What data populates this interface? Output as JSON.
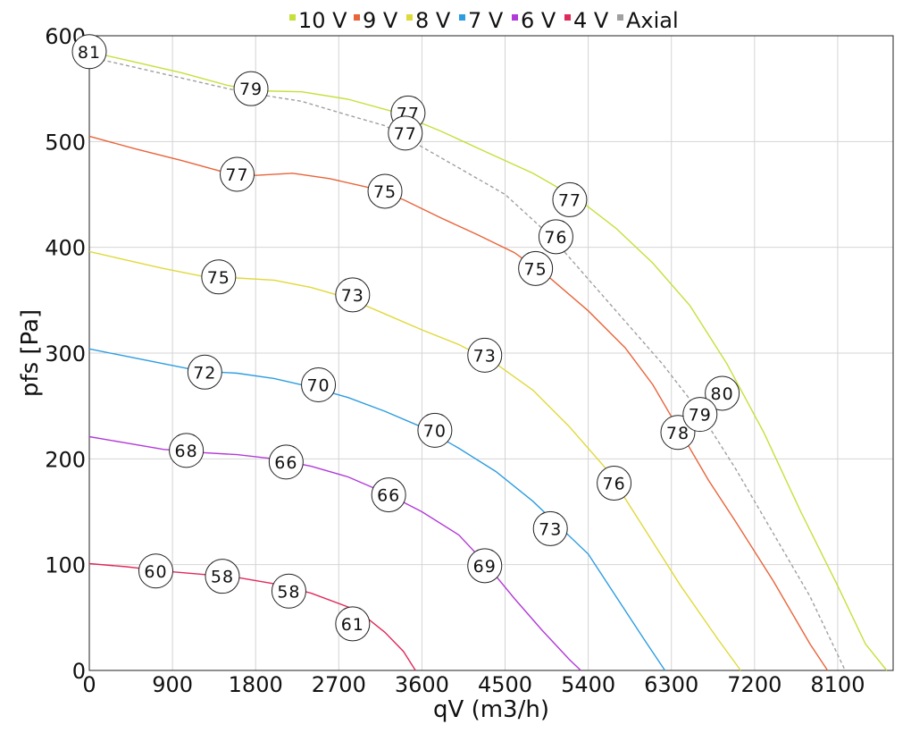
{
  "chart_data": {
    "type": "line",
    "xlabel": "qV (m3/h)",
    "ylabel": "pfs [Pa]",
    "xlim": [
      0,
      8700
    ],
    "ylim": [
      0,
      600
    ],
    "x_ticks": [
      0,
      900,
      1800,
      2700,
      3600,
      4500,
      5400,
      6300,
      7200,
      8100
    ],
    "y_ticks": [
      0,
      100,
      200,
      300,
      400,
      500,
      600
    ],
    "grid": true,
    "legend_position": "top",
    "series": [
      {
        "name": "10 V",
        "color": "#c6df3a",
        "dash": false,
        "points": [
          [
            0,
            585
          ],
          [
            500,
            575
          ],
          [
            1000,
            565
          ],
          [
            1500,
            553
          ],
          [
            1800,
            548
          ],
          [
            2300,
            547
          ],
          [
            2800,
            540
          ],
          [
            3300,
            528
          ],
          [
            3800,
            510
          ],
          [
            4300,
            490
          ],
          [
            4800,
            470
          ],
          [
            5300,
            445
          ],
          [
            5700,
            418
          ],
          [
            6100,
            385
          ],
          [
            6500,
            345
          ],
          [
            6900,
            290
          ],
          [
            7300,
            225
          ],
          [
            7700,
            150
          ],
          [
            8100,
            80
          ],
          [
            8400,
            25
          ],
          [
            8630,
            0
          ]
        ],
        "labels": [
          {
            "x": 0,
            "y": 585,
            "text": "81"
          },
          {
            "x": 1750,
            "y": 550,
            "text": "79"
          },
          {
            "x": 3450,
            "y": 527,
            "text": "77"
          },
          {
            "x": 5200,
            "y": 445,
            "text": "77"
          },
          {
            "x": 6850,
            "y": 262,
            "text": "80"
          }
        ]
      },
      {
        "name": "9 V",
        "color": "#e8643a",
        "dash": false,
        "points": [
          [
            0,
            505
          ],
          [
            500,
            493
          ],
          [
            1000,
            482
          ],
          [
            1500,
            470
          ],
          [
            1800,
            468
          ],
          [
            2200,
            470
          ],
          [
            2600,
            465
          ],
          [
            3000,
            457
          ],
          [
            3400,
            445
          ],
          [
            3800,
            428
          ],
          [
            4200,
            412
          ],
          [
            4600,
            395
          ],
          [
            5000,
            370
          ],
          [
            5400,
            340
          ],
          [
            5800,
            305
          ],
          [
            6100,
            270
          ],
          [
            6400,
            225
          ],
          [
            6700,
            180
          ],
          [
            7000,
            140
          ],
          [
            7400,
            85
          ],
          [
            7800,
            25
          ],
          [
            7990,
            0
          ]
        ],
        "labels": [
          {
            "x": 1600,
            "y": 469,
            "text": "77"
          },
          {
            "x": 3200,
            "y": 453,
            "text": "75"
          },
          {
            "x": 4830,
            "y": 380,
            "text": "75"
          },
          {
            "x": 6370,
            "y": 225,
            "text": "78"
          }
        ]
      },
      {
        "name": "8 V",
        "color": "#e0d93a",
        "dash": false,
        "points": [
          [
            0,
            396
          ],
          [
            400,
            388
          ],
          [
            800,
            380
          ],
          [
            1200,
            373
          ],
          [
            1600,
            371
          ],
          [
            2000,
            369
          ],
          [
            2400,
            362
          ],
          [
            2800,
            352
          ],
          [
            3200,
            337
          ],
          [
            3600,
            322
          ],
          [
            4000,
            308
          ],
          [
            4400,
            290
          ],
          [
            4800,
            265
          ],
          [
            5200,
            230
          ],
          [
            5600,
            190
          ],
          [
            6000,
            135
          ],
          [
            6400,
            80
          ],
          [
            6800,
            30
          ],
          [
            7050,
            0
          ]
        ],
        "labels": [
          {
            "x": 1400,
            "y": 372,
            "text": "75"
          },
          {
            "x": 2850,
            "y": 355,
            "text": "73"
          },
          {
            "x": 4280,
            "y": 298,
            "text": "73"
          },
          {
            "x": 5680,
            "y": 177,
            "text": "76"
          }
        ]
      },
      {
        "name": "7 V",
        "color": "#2d9de0",
        "dash": false,
        "points": [
          [
            0,
            304
          ],
          [
            400,
            297
          ],
          [
            800,
            290
          ],
          [
            1200,
            283
          ],
          [
            1600,
            281
          ],
          [
            2000,
            276
          ],
          [
            2400,
            268
          ],
          [
            2800,
            258
          ],
          [
            3200,
            245
          ],
          [
            3600,
            230
          ],
          [
            4000,
            210
          ],
          [
            4400,
            188
          ],
          [
            4800,
            160
          ],
          [
            5100,
            135
          ],
          [
            5400,
            110
          ],
          [
            5700,
            70
          ],
          [
            6000,
            30
          ],
          [
            6230,
            0
          ]
        ],
        "labels": [
          {
            "x": 1250,
            "y": 282,
            "text": "72"
          },
          {
            "x": 2480,
            "y": 270,
            "text": "70"
          },
          {
            "x": 3740,
            "y": 227,
            "text": "70"
          },
          {
            "x": 4990,
            "y": 134,
            "text": "73"
          }
        ]
      },
      {
        "name": "6 V",
        "color": "#b23ad8",
        "dash": false,
        "points": [
          [
            0,
            221
          ],
          [
            400,
            215
          ],
          [
            800,
            209
          ],
          [
            1200,
            206
          ],
          [
            1600,
            204
          ],
          [
            2000,
            200
          ],
          [
            2400,
            193
          ],
          [
            2800,
            183
          ],
          [
            3200,
            168
          ],
          [
            3600,
            150
          ],
          [
            4000,
            128
          ],
          [
            4300,
            100
          ],
          [
            4600,
            68
          ],
          [
            4900,
            38
          ],
          [
            5200,
            10
          ],
          [
            5320,
            0
          ]
        ],
        "labels": [
          {
            "x": 1050,
            "y": 208,
            "text": "68"
          },
          {
            "x": 2130,
            "y": 197,
            "text": "66"
          },
          {
            "x": 3240,
            "y": 166,
            "text": "66"
          },
          {
            "x": 4280,
            "y": 99,
            "text": "69"
          }
        ]
      },
      {
        "name": "4 V",
        "color": "#e02a5a",
        "dash": false,
        "points": [
          [
            0,
            101
          ],
          [
            400,
            98
          ],
          [
            800,
            94
          ],
          [
            1200,
            91
          ],
          [
            1600,
            88
          ],
          [
            2000,
            82
          ],
          [
            2400,
            73
          ],
          [
            2800,
            60
          ],
          [
            3000,
            50
          ],
          [
            3200,
            36
          ],
          [
            3400,
            18
          ],
          [
            3530,
            0
          ]
        ],
        "labels": [
          {
            "x": 720,
            "y": 94,
            "text": "60"
          },
          {
            "x": 1440,
            "y": 89,
            "text": "58"
          },
          {
            "x": 2160,
            "y": 75,
            "text": "58"
          },
          {
            "x": 2850,
            "y": 44,
            "text": "61"
          }
        ]
      },
      {
        "name": "Axial",
        "color": "#a0a0a0",
        "dash": true,
        "points": [
          [
            0,
            580
          ],
          [
            500,
            570
          ],
          [
            1000,
            560
          ],
          [
            1500,
            550
          ],
          [
            1800,
            545
          ],
          [
            2300,
            538
          ],
          [
            2800,
            525
          ],
          [
            3200,
            515
          ],
          [
            3600,
            495
          ],
          [
            4000,
            475
          ],
          [
            4500,
            450
          ],
          [
            5000,
            410
          ],
          [
            5400,
            370
          ],
          [
            5800,
            330
          ],
          [
            6200,
            290
          ],
          [
            6600,
            245
          ],
          [
            7000,
            190
          ],
          [
            7400,
            130
          ],
          [
            7800,
            70
          ],
          [
            8100,
            15
          ],
          [
            8180,
            0
          ]
        ],
        "labels": [
          {
            "x": 3420,
            "y": 508,
            "text": "77"
          },
          {
            "x": 5050,
            "y": 410,
            "text": "76"
          },
          {
            "x": 6610,
            "y": 242,
            "text": "79"
          }
        ]
      }
    ]
  }
}
